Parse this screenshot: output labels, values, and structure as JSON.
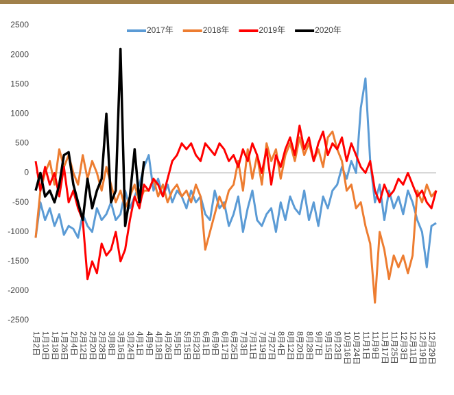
{
  "chart_data": {
    "type": "line",
    "categories": [
      "1月2日",
      null,
      "1月10日",
      null,
      "1月18日",
      null,
      "1月26日",
      null,
      "2月4日",
      null,
      "2月12日",
      null,
      "2月20日",
      null,
      "2月28日",
      null,
      "3月8日",
      null,
      "3月16日",
      null,
      "3月24日",
      null,
      "4月1日",
      null,
      "4月9日",
      null,
      "4月18日",
      null,
      "4月26日",
      null,
      "5月5日",
      null,
      "5月15日",
      null,
      "5月23日",
      null,
      "6月1日",
      null,
      "6月9日",
      null,
      "6月17日",
      null,
      "6月25日",
      null,
      "7月3日",
      null,
      "7月11日",
      null,
      "7月19日",
      null,
      "7月27日",
      null,
      "8月4日",
      null,
      "8月12日",
      null,
      "8月20日",
      null,
      "8月28日",
      null,
      "9月7日",
      null,
      "9月15日",
      null,
      "9月23日",
      null,
      "10月16日",
      null,
      "10月24日",
      null,
      "11月1日",
      null,
      "11月9日",
      null,
      "11月17日",
      null,
      "11月25日",
      null,
      "12月3日",
      null,
      "12月11日",
      null,
      "12月19日",
      null,
      "12月29日",
      null
    ],
    "series": [
      {
        "name": "2017年",
        "color": "#5b9bd5",
        "values": [
          -1100,
          -500,
          -800,
          -600,
          -900,
          -700,
          -1050,
          -900,
          -950,
          -1100,
          -700,
          -900,
          -1000,
          -600,
          -800,
          -700,
          -500,
          -800,
          -700,
          -300,
          -600,
          -400,
          -200,
          100,
          300,
          -300,
          -100,
          -400,
          -200,
          -500,
          -300,
          -400,
          -600,
          -300,
          -500,
          -400,
          -700,
          -800,
          -300,
          -600,
          -500,
          -900,
          -700,
          -400,
          -1000,
          -600,
          -300,
          -800,
          -900,
          -700,
          -600,
          -1000,
          -500,
          -800,
          -400,
          -600,
          -700,
          -300,
          -800,
          -500,
          -900,
          -400,
          -600,
          -300,
          -200,
          100,
          -100,
          200,
          0,
          1100,
          1600,
          200,
          -500,
          -200,
          -800,
          -300,
          -600,
          -400,
          -700,
          -300,
          -500,
          -800,
          -1000,
          -1600,
          -900,
          -850
        ]
      },
      {
        "name": "2018年",
        "color": "#ed7d31",
        "values": [
          -1100,
          -300,
          0,
          200,
          -200,
          400,
          100,
          300,
          0,
          -200,
          300,
          -100,
          200,
          0,
          -300,
          100,
          -200,
          -500,
          -300,
          -600,
          -400,
          -200,
          -500,
          -300,
          -300,
          -100,
          -400,
          -200,
          -500,
          -300,
          -200,
          -400,
          -300,
          -500,
          -200,
          -400,
          -1300,
          -1000,
          -700,
          -400,
          -600,
          -300,
          -200,
          200,
          -300,
          400,
          -100,
          300,
          -200,
          500,
          200,
          400,
          -100,
          300,
          500,
          200,
          600,
          300,
          500,
          200,
          400,
          100,
          600,
          700,
          400,
          200,
          -300,
          -200,
          -600,
          -500,
          -900,
          -1200,
          -2200,
          -1000,
          -1300,
          -1800,
          -1400,
          -1600,
          -1400,
          -1700,
          -1400,
          -300,
          -500,
          -200,
          -400,
          -300
        ]
      },
      {
        "name": "2019年",
        "color": "#ff0000",
        "values": [
          200,
          -300,
          100,
          -200,
          0,
          -400,
          100,
          -500,
          -300,
          -600,
          -800,
          -1800,
          -1500,
          -1700,
          -1200,
          -1400,
          -1300,
          -1000,
          -1500,
          -1300,
          -800,
          -400,
          -600,
          -200,
          -300,
          -100,
          -200,
          -400,
          -100,
          200,
          300,
          500,
          400,
          500,
          300,
          200,
          500,
          400,
          300,
          500,
          400,
          200,
          300,
          100,
          400,
          200,
          500,
          300,
          0,
          400,
          -200,
          300,
          100,
          400,
          600,
          300,
          800,
          400,
          600,
          200,
          500,
          700,
          300,
          500,
          400,
          600,
          200,
          500,
          300,
          100,
          0,
          200,
          -300,
          -500,
          -200,
          -400,
          -300,
          -100,
          -200,
          0,
          -200,
          -400,
          -300,
          -500,
          -600,
          -300
        ]
      },
      {
        "name": "2020年",
        "color": "#000000",
        "values": [
          -300,
          0,
          -400,
          -300,
          -500,
          -200,
          300,
          350,
          -200,
          -500,
          -800,
          -100,
          -600,
          -300,
          -100,
          1000,
          -500,
          -300,
          2100,
          -900,
          -400,
          400,
          -500,
          200,
          null,
          null,
          null,
          null,
          null,
          null,
          null,
          null,
          null,
          null,
          null,
          null,
          null,
          null,
          null,
          null,
          null,
          null,
          null,
          null,
          null,
          null,
          null,
          null,
          null,
          null,
          null,
          null,
          null,
          null,
          null,
          null,
          null,
          null,
          null,
          null,
          null,
          null,
          null,
          null,
          null,
          null,
          null,
          null,
          null,
          null,
          null,
          null,
          null,
          null,
          null,
          null,
          null,
          null,
          null,
          null,
          null,
          null,
          null,
          null,
          null,
          null
        ]
      }
    ],
    "ylim": [
      -2500,
      2500
    ],
    "yticks": [
      -2500,
      -2000,
      -1500,
      -1000,
      -500,
      0,
      500,
      1000,
      1500,
      2000,
      2500
    ],
    "legend": "top"
  }
}
